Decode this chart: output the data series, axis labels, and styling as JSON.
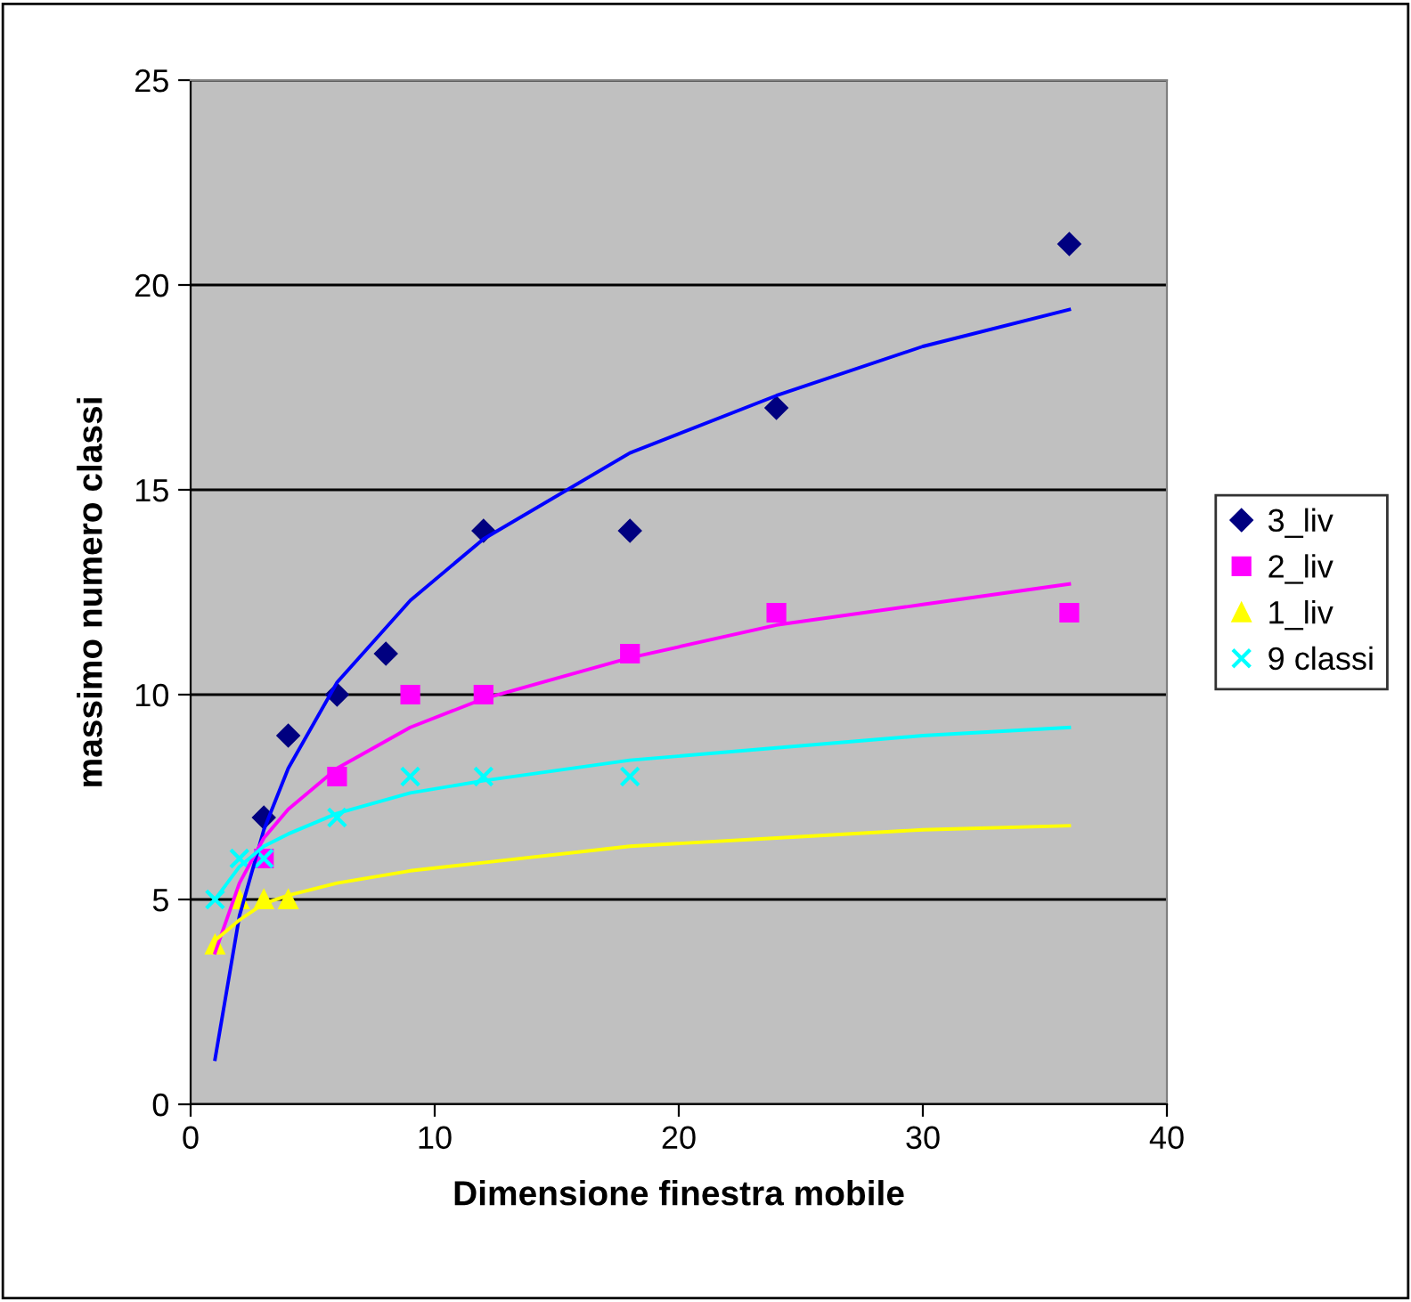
{
  "chart_data": {
    "type": "scatter",
    "xlabel": "Dimensione finestra mobile",
    "ylabel": "massimo numero classi",
    "xlim": [
      0,
      40
    ],
    "xticks": [
      0,
      10,
      20,
      30,
      40
    ],
    "ylim": [
      0,
      25
    ],
    "yticks": [
      0,
      5,
      10,
      15,
      20,
      25
    ],
    "grid": "y",
    "legend": "right",
    "series": [
      {
        "name": "3_liv",
        "color": "#000080",
        "marker": "diamond",
        "x": [
          3,
          4,
          6,
          8,
          12,
          18,
          24,
          36
        ],
        "values": [
          7,
          9,
          10,
          11,
          14,
          14,
          17,
          21
        ]
      },
      {
        "name": "2_liv",
        "color": "#ff00ff",
        "marker": "square",
        "x": [
          3,
          6,
          9,
          12,
          18,
          24,
          36
        ],
        "values": [
          6,
          8,
          10,
          10,
          11,
          12,
          12
        ]
      },
      {
        "name": "1_liv",
        "color": "#ffff00",
        "marker": "triangle",
        "x": [
          1,
          2,
          3,
          4
        ],
        "values": [
          3.9,
          5,
          5,
          5
        ]
      },
      {
        "name": "9 classi",
        "color": "#00ffff",
        "marker": "cross",
        "x": [
          1,
          2,
          3,
          6,
          9,
          12,
          18
        ],
        "values": [
          5,
          6,
          6,
          7,
          8,
          8,
          8
        ]
      },
      {
        "type": "line",
        "color": "#0000ff",
        "x": [
          1,
          2,
          3,
          4,
          6,
          9,
          12,
          18,
          24,
          30,
          36
        ],
        "values": [
          1.1,
          4.6,
          6.7,
          8.2,
          10.3,
          12.3,
          13.8,
          15.9,
          17.3,
          18.5,
          19.4
        ]
      },
      {
        "type": "line",
        "color": "#ff00ff",
        "x": [
          1,
          2,
          3,
          4,
          6,
          9,
          12,
          18,
          24,
          30,
          36
        ],
        "values": [
          3.7,
          5.4,
          6.5,
          7.2,
          8.2,
          9.2,
          9.9,
          10.9,
          11.7,
          12.2,
          12.7
        ]
      },
      {
        "type": "line",
        "color": "#ffff00",
        "x": [
          1,
          2,
          3,
          4,
          6,
          9,
          12,
          18,
          24,
          30,
          36
        ],
        "values": [
          4.0,
          4.5,
          4.9,
          5.1,
          5.4,
          5.7,
          5.9,
          6.3,
          6.5,
          6.7,
          6.8
        ]
      },
      {
        "type": "line",
        "color": "#00ffff",
        "x": [
          1,
          2,
          3,
          4,
          6,
          9,
          12,
          18,
          24,
          30,
          36
        ],
        "values": [
          5.0,
          5.8,
          6.3,
          6.6,
          7.1,
          7.6,
          7.9,
          8.4,
          8.7,
          9.0,
          9.2
        ]
      }
    ]
  }
}
